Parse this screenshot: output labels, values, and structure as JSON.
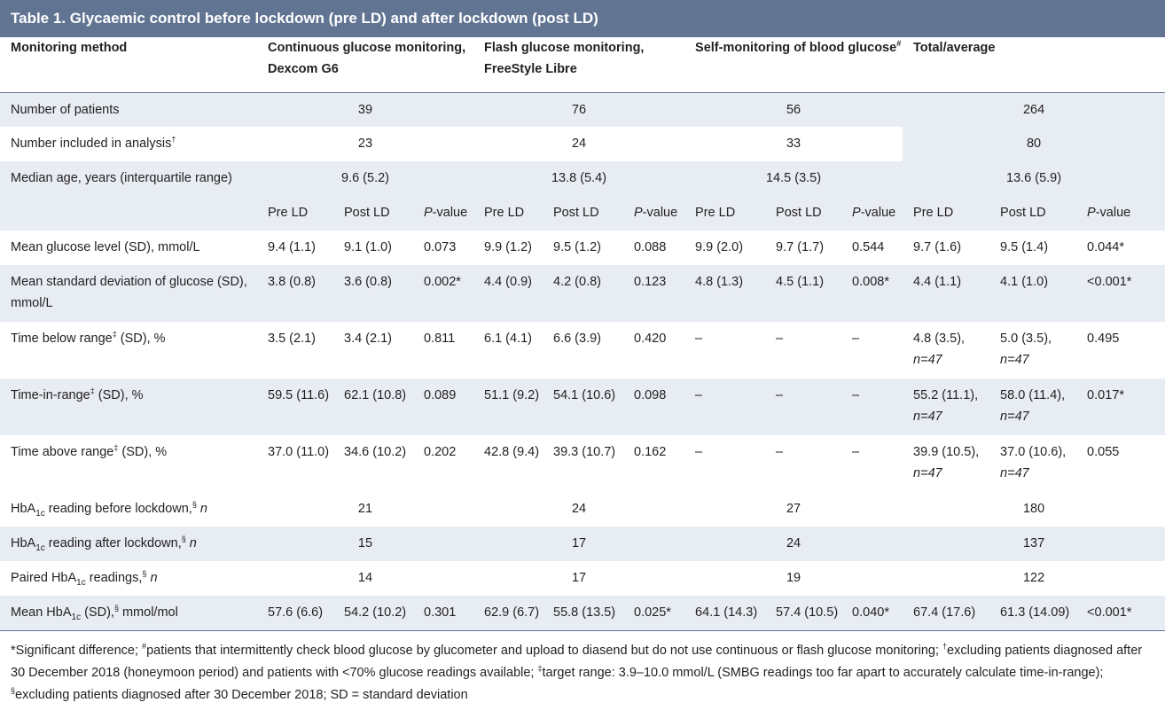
{
  "title": "Table 1. Glycaemic control before lockdown (pre LD) and after lockdown (post LD)",
  "header": {
    "col0": "Monitoring method",
    "col1": "Continuous glucose monitoring, Dexcom G6",
    "col2": "Flash glucose monitoring, FreeStyle Libre",
    "col3_a": "Self-monitoring of blood glucose",
    "col3_mark": "#",
    "col4": "Total/average"
  },
  "rows_summary": [
    {
      "label": "Number of patients",
      "values": [
        "39",
        "76",
        "56",
        "264"
      ]
    },
    {
      "label": "Number included in analysis",
      "mark": "†",
      "values": [
        "23",
        "24",
        "33",
        "80"
      ]
    },
    {
      "label": "Median age, years (interquartile range)",
      "values": [
        "9.6 (5.2)",
        "13.8 (5.4)",
        "14.5 (3.5)",
        "13.6 (5.9)"
      ]
    }
  ],
  "sub_header": {
    "pre": "Pre LD",
    "post": "Post LD",
    "p_italic": "P",
    "p_rest": "-value"
  },
  "rows_detail": [
    {
      "label": "Mean glucose level (SD), mmol/L",
      "v": [
        "9.4 (1.1)",
        "9.1 (1.0)",
        "0.073",
        "9.9 (1.2)",
        "9.5 (1.2)",
        "0.088",
        "9.9 (2.0)",
        "9.7 (1.7)",
        "0.544",
        "9.7 (1.6)",
        "9.5 (1.4)",
        "0.044*"
      ]
    },
    {
      "label": "Mean standard deviation of glucose (SD), mmol/L",
      "v": [
        "3.8 (0.8)",
        "3.6 (0.8)",
        "0.002*",
        "4.4 (0.9)",
        "4.2 (0.8)",
        "0.123",
        "4.8 (1.3)",
        "4.5 (1.1)",
        "0.008*",
        "4.4 (1.1)",
        "4.1 (1.0)",
        "<0.001*"
      ]
    },
    {
      "label_a": "Time below range",
      "mark": "‡",
      "label_b": " (SD), %",
      "v": [
        "3.5 (2.1)",
        "3.4 (2.1)",
        "0.811",
        "6.1 (4.1)",
        "6.6 (3.9)",
        "0.420",
        "–",
        "–",
        "–",
        "4.8 (3.5),",
        "5.0 (3.5),",
        "0.495"
      ],
      "n": "n=47"
    },
    {
      "label_a": "Time-in-range",
      "mark": "‡",
      "label_b": " (SD), %",
      "v": [
        "59.5 (11.6)",
        "62.1 (10.8)",
        "0.089",
        "51.1 (9.2)",
        "54.1 (10.6)",
        "0.098",
        "–",
        "–",
        "–",
        "55.2 (11.1),",
        "58.0 (11.4),",
        "0.017*"
      ],
      "n": "n=47"
    },
    {
      "label_a": "Time above range",
      "mark": "‡",
      "label_b": " (SD), %",
      "v": [
        "37.0 (11.0)",
        "34.6 (10.2)",
        "0.202",
        "42.8 (9.4)",
        "39.3 (10.7)",
        "0.162",
        "–",
        "–",
        "–",
        "39.9  (10.5),",
        "37.0 (10.6),",
        "0.055"
      ],
      "n": "n=47"
    }
  ],
  "rows_hba": [
    {
      "a": "HbA",
      "sub": "1c",
      "b": " reading before lockdown,",
      "mark": "§",
      "c": " n",
      "values": [
        "21",
        "24",
        "27",
        "180"
      ]
    },
    {
      "a": "HbA",
      "sub": "1c",
      "b": " reading after lockdown,",
      "mark": "§",
      "c": " n",
      "values": [
        "15",
        "17",
        "24",
        "137"
      ]
    },
    {
      "a": "Paired HbA",
      "sub": "1c",
      "b": " readings,",
      "mark": "§",
      "c": " n",
      "values": [
        "14",
        "17",
        "19",
        "122"
      ]
    }
  ],
  "row_last": {
    "a": "Mean HbA",
    "sub": "1c",
    "b": " (SD),",
    "mark": "§",
    "c": " mmol/mol",
    "v": [
      "57.6 (6.6)",
      "54.2 (10.2)",
      "0.301",
      "62.9 (6.7)",
      "55.8 (13.5)",
      "0.025*",
      "64.1 (14.3)",
      "57.4 (10.5)",
      "0.040*",
      "67.4 (17.6)",
      "61.3 (14.09)",
      "<0.001*"
    ]
  },
  "footnote": {
    "p1": "*Significant difference; ",
    "m1": "#",
    "p2": "patients that intermittently check blood glucose by glucometer and upload to diasend but do not use continuous or flash glucose monitoring; ",
    "m2": "†",
    "p3": "excluding patients diagnosed after 30 December 2018 (honeymoon period) and patients with <70% glucose readings available; ",
    "m3": "‡",
    "p4": "target range: 3.9–10.0 mmol/L (SMBG readings too far apart to accurately calculate time-in-range); ",
    "m4": "§",
    "p5": "excluding patients diagnosed after 30 December 2018; SD = standard deviation"
  },
  "colors": {
    "header_bar": "#617593",
    "row_shade": "#e8ecf3",
    "rule": "#617593"
  }
}
